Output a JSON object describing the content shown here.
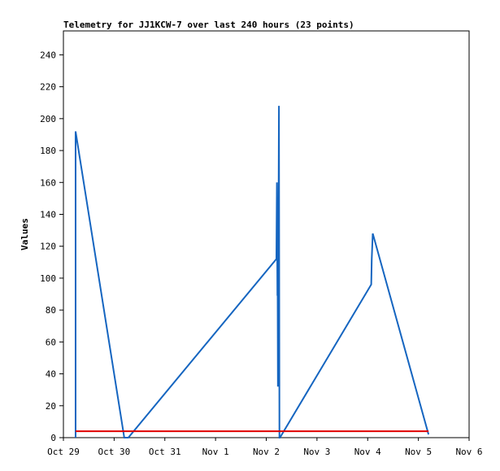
{
  "chart_data": {
    "type": "line",
    "title": "Telemetry for JJ1KCW-7 over last 240 hours (23 points)",
    "y_label": "Values",
    "xlim": [
      0,
      8
    ],
    "xticks": [
      {
        "value": 0,
        "label": "Oct 29"
      },
      {
        "value": 1,
        "label": "Oct 30"
      },
      {
        "value": 2,
        "label": "Oct 31"
      },
      {
        "value": 3,
        "label": "Nov 1"
      },
      {
        "value": 4,
        "label": "Nov 2"
      },
      {
        "value": 5,
        "label": "Nov 3"
      },
      {
        "value": 6,
        "label": "Nov 4"
      },
      {
        "value": 7,
        "label": "Nov 5"
      },
      {
        "value": 8,
        "label": "Nov 6"
      }
    ],
    "ylim": [
      0,
      255
    ],
    "yticks": [
      0,
      20,
      40,
      60,
      80,
      100,
      120,
      140,
      160,
      180,
      200,
      220,
      240
    ],
    "series": [
      {
        "color": "#1565c0",
        "x": [
          0.24,
          0.24,
          1.2,
          1.28,
          4.2,
          4.21,
          4.22,
          4.22,
          4.23,
          4.25,
          4.26,
          4.27,
          6.07,
          6.08,
          6.1,
          7.2
        ],
        "values": [
          0,
          192,
          0,
          0,
          112,
          160,
          89,
          145,
          32,
          208,
          0,
          0,
          96,
          112,
          128,
          2
        ]
      },
      {
        "color": "#e00000",
        "x": [
          0.24,
          7.2
        ],
        "values": [
          4,
          4
        ]
      }
    ]
  }
}
